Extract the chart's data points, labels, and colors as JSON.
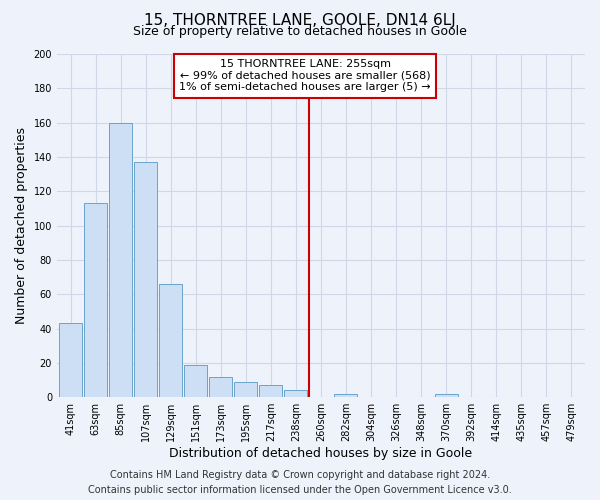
{
  "title": "15, THORNTREE LANE, GOOLE, DN14 6LJ",
  "subtitle": "Size of property relative to detached houses in Goole",
  "xlabel": "Distribution of detached houses by size in Goole",
  "ylabel": "Number of detached properties",
  "bar_labels": [
    "41sqm",
    "63sqm",
    "85sqm",
    "107sqm",
    "129sqm",
    "151sqm",
    "173sqm",
    "195sqm",
    "217sqm",
    "238sqm",
    "260sqm",
    "282sqm",
    "304sqm",
    "326sqm",
    "348sqm",
    "370sqm",
    "392sqm",
    "414sqm",
    "435sqm",
    "457sqm",
    "479sqm"
  ],
  "bar_values": [
    43,
    113,
    160,
    137,
    66,
    19,
    12,
    9,
    7,
    4,
    0,
    2,
    0,
    0,
    0,
    2,
    0,
    0,
    0,
    0,
    0
  ],
  "bar_color": "#ccdff5",
  "bar_edge_color": "#6ba3cc",
  "vline_color": "#cc0000",
  "vline_x_index": 10,
  "annotation_line0": "15 THORNTREE LANE: 255sqm",
  "annotation_line1": "← 99% of detached houses are smaller (568)",
  "annotation_line2": "1% of semi-detached houses are larger (5) →",
  "annotation_box_color": "#ffffff",
  "annotation_box_edge": "#cc0000",
  "ylim": [
    0,
    200
  ],
  "yticks": [
    0,
    20,
    40,
    60,
    80,
    100,
    120,
    140,
    160,
    180,
    200
  ],
  "footer_line1": "Contains HM Land Registry data © Crown copyright and database right 2024.",
  "footer_line2": "Contains public sector information licensed under the Open Government Licence v3.0.",
  "bg_color": "#eef2fb",
  "grid_color": "#d0d8e8",
  "title_fontsize": 11,
  "subtitle_fontsize": 9,
  "axis_label_fontsize": 9,
  "tick_fontsize": 7,
  "annotation_fontsize": 8,
  "footer_fontsize": 7
}
